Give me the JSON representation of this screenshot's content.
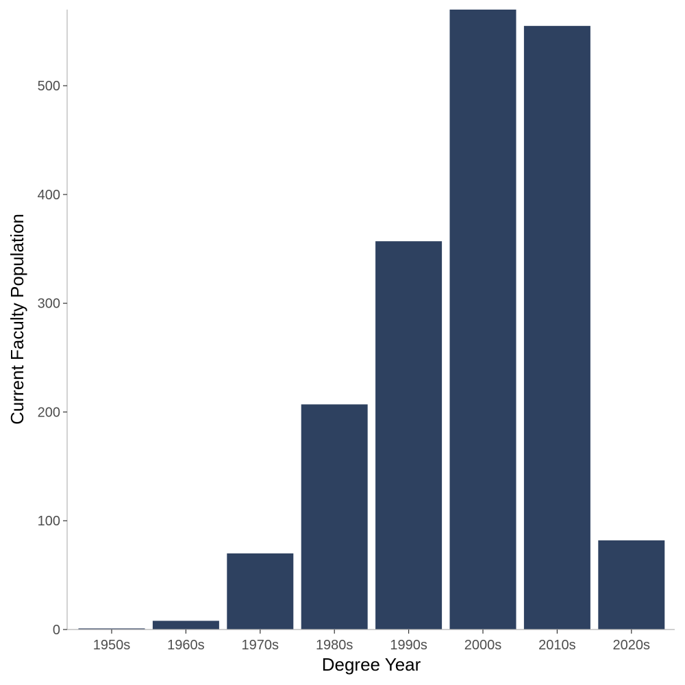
{
  "chart_data": {
    "type": "bar",
    "categories": [
      "1950s",
      "1960s",
      "1970s",
      "1980s",
      "1990s",
      "2000s",
      "2010s",
      "2020s"
    ],
    "values": [
      1,
      8,
      70,
      207,
      357,
      570,
      555,
      82
    ],
    "xlabel": "Degree Year",
    "ylabel": "Current Faculty Population",
    "ylim": [
      0,
      570
    ],
    "yticks": [
      0,
      100,
      200,
      300,
      400,
      500
    ],
    "ytick_labels": [
      "0",
      "100",
      "200",
      "300",
      "400",
      "500"
    ],
    "grid": false,
    "bar_color": "#2e4160"
  }
}
